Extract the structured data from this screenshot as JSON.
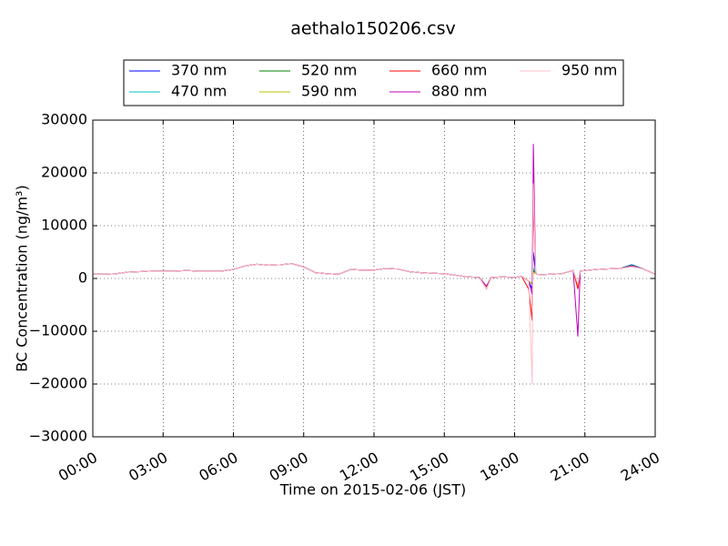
{
  "chart_data": {
    "type": "line",
    "title": "aethalo150206.csv",
    "x_label": "Time on 2015-02-06 (JST)",
    "y_label": "BC Concentration (ng/m³)",
    "x": [
      0,
      0.5,
      1,
      1.5,
      2,
      2.5,
      3,
      3.5,
      4,
      4.5,
      5,
      5.5,
      6,
      6.5,
      7,
      7.5,
      8,
      8.5,
      9,
      9.5,
      10,
      10.5,
      11,
      11.5,
      12,
      12.5,
      13,
      13.5,
      14,
      14.5,
      15,
      15.5,
      16,
      16.5,
      16.8,
      17,
      17.5,
      18,
      18.3,
      18.6,
      18.75,
      18.8,
      18.9,
      19,
      19.5,
      20,
      20.5,
      20.7,
      20.8,
      21,
      21.5,
      22,
      22.5,
      23,
      23.5,
      24
    ],
    "series": [
      {
        "name": "370 nm",
        "color": "#0000ff",
        "values": [
          800,
          800,
          900,
          1200,
          1300,
          1400,
          1400,
          1400,
          1500,
          1400,
          1400,
          1400,
          1700,
          2400,
          2700,
          2500,
          2600,
          2800,
          2200,
          1100,
          900,
          800,
          1700,
          1600,
          1600,
          1900,
          1800,
          1300,
          1100,
          1000,
          900,
          600,
          300,
          200,
          -1500,
          200,
          300,
          200,
          400,
          -500,
          -2000,
          5000,
          1000,
          700,
          800,
          900,
          1500,
          -1500,
          1400,
          1500,
          1700,
          1800,
          1900,
          2600,
          1800,
          800
        ]
      },
      {
        "name": "470 nm",
        "color": "#00bfbf",
        "values": [
          800,
          800,
          900,
          1200,
          1300,
          1400,
          1400,
          1400,
          1500,
          1400,
          1400,
          1400,
          1700,
          2400,
          2700,
          2500,
          2600,
          2800,
          2200,
          1100,
          900,
          800,
          1700,
          1600,
          1600,
          1900,
          1800,
          1300,
          1100,
          1000,
          900,
          600,
          300,
          200,
          -1500,
          200,
          300,
          200,
          400,
          -500,
          -1000,
          2000,
          1000,
          700,
          800,
          900,
          1500,
          -1500,
          1400,
          1500,
          1700,
          1800,
          1900,
          2500,
          1800,
          800
        ]
      },
      {
        "name": "520 nm",
        "color": "#008000",
        "values": [
          800,
          800,
          900,
          1200,
          1300,
          1400,
          1400,
          1400,
          1500,
          1400,
          1400,
          1400,
          1700,
          2400,
          2700,
          2500,
          2600,
          2800,
          2200,
          1100,
          900,
          800,
          1700,
          1600,
          1600,
          1900,
          1800,
          1300,
          1100,
          1000,
          900,
          600,
          300,
          200,
          -1500,
          200,
          300,
          200,
          400,
          -500,
          -1000,
          1500,
          1000,
          700,
          800,
          900,
          1500,
          -1500,
          1400,
          1500,
          1700,
          1800,
          1900,
          2400,
          1800,
          800
        ]
      },
      {
        "name": "590 nm",
        "color": "#bfbf00",
        "values": [
          800,
          800,
          900,
          1200,
          1300,
          1400,
          1400,
          1400,
          1500,
          1400,
          1400,
          1400,
          1700,
          2400,
          2700,
          2500,
          2600,
          2800,
          2200,
          1100,
          900,
          800,
          1700,
          1600,
          1600,
          1900,
          1800,
          1300,
          1100,
          1000,
          900,
          600,
          300,
          200,
          -1500,
          200,
          300,
          200,
          400,
          -500,
          -1000,
          1000,
          1000,
          700,
          800,
          900,
          1500,
          -1500,
          1400,
          1500,
          1700,
          1800,
          1900,
          2400,
          1800,
          800
        ]
      },
      {
        "name": "660 nm",
        "color": "#ff0000",
        "values": [
          800,
          800,
          900,
          1200,
          1300,
          1400,
          1400,
          1400,
          1500,
          1400,
          1400,
          1400,
          1700,
          2400,
          2700,
          2500,
          2600,
          2800,
          2200,
          1100,
          900,
          800,
          1700,
          1600,
          1600,
          1900,
          1800,
          1300,
          1100,
          1000,
          900,
          600,
          300,
          200,
          -2000,
          200,
          300,
          200,
          400,
          -2000,
          -8000,
          15000,
          1000,
          700,
          800,
          900,
          1500,
          -2000,
          1400,
          1500,
          1700,
          1800,
          1900,
          2300,
          1800,
          800
        ]
      },
      {
        "name": "880 nm",
        "color": "#bf00bf",
        "values": [
          800,
          800,
          900,
          1200,
          1300,
          1400,
          1400,
          1400,
          1500,
          1400,
          1400,
          1400,
          1700,
          2400,
          2700,
          2500,
          2600,
          2800,
          2200,
          1100,
          900,
          800,
          1700,
          1600,
          1600,
          1900,
          1800,
          1300,
          1100,
          1000,
          900,
          600,
          300,
          200,
          -1500,
          200,
          300,
          200,
          400,
          -500,
          -3000,
          25500,
          1000,
          700,
          800,
          900,
          1500,
          -11000,
          1400,
          1500,
          1700,
          1800,
          1900,
          2300,
          1800,
          800
        ]
      },
      {
        "name": "950 nm",
        "color": "#ffc0cb",
        "values": [
          800,
          800,
          900,
          1200,
          1300,
          1400,
          1400,
          1400,
          1500,
          1400,
          1400,
          1400,
          1700,
          2400,
          2700,
          2500,
          2600,
          2800,
          2200,
          1100,
          900,
          800,
          1700,
          1600,
          1600,
          1900,
          1800,
          1300,
          1100,
          1000,
          900,
          600,
          300,
          200,
          -2000,
          200,
          300,
          200,
          400,
          -500,
          -20000,
          18000,
          1000,
          700,
          800,
          900,
          1500,
          -1000,
          1400,
          1500,
          1700,
          1800,
          1900,
          2200,
          1800,
          800
        ]
      }
    ],
    "xlim": [
      0,
      24
    ],
    "xticks": [
      {
        "value": 0,
        "label": "00:00"
      },
      {
        "value": 3,
        "label": "03:00"
      },
      {
        "value": 6,
        "label": "06:00"
      },
      {
        "value": 9,
        "label": "09:00"
      },
      {
        "value": 12,
        "label": "12:00"
      },
      {
        "value": 15,
        "label": "15:00"
      },
      {
        "value": 18,
        "label": "18:00"
      },
      {
        "value": 21,
        "label": "21:00"
      },
      {
        "value": 24,
        "label": "24:00"
      }
    ],
    "ylim": [
      -30000,
      30000
    ],
    "yticks": [
      {
        "value": -30000,
        "label": "−30000"
      },
      {
        "value": -20000,
        "label": "−20000"
      },
      {
        "value": -10000,
        "label": "−10000"
      },
      0,
      10000,
      20000,
      30000
    ],
    "grid": true,
    "legend": "top"
  }
}
